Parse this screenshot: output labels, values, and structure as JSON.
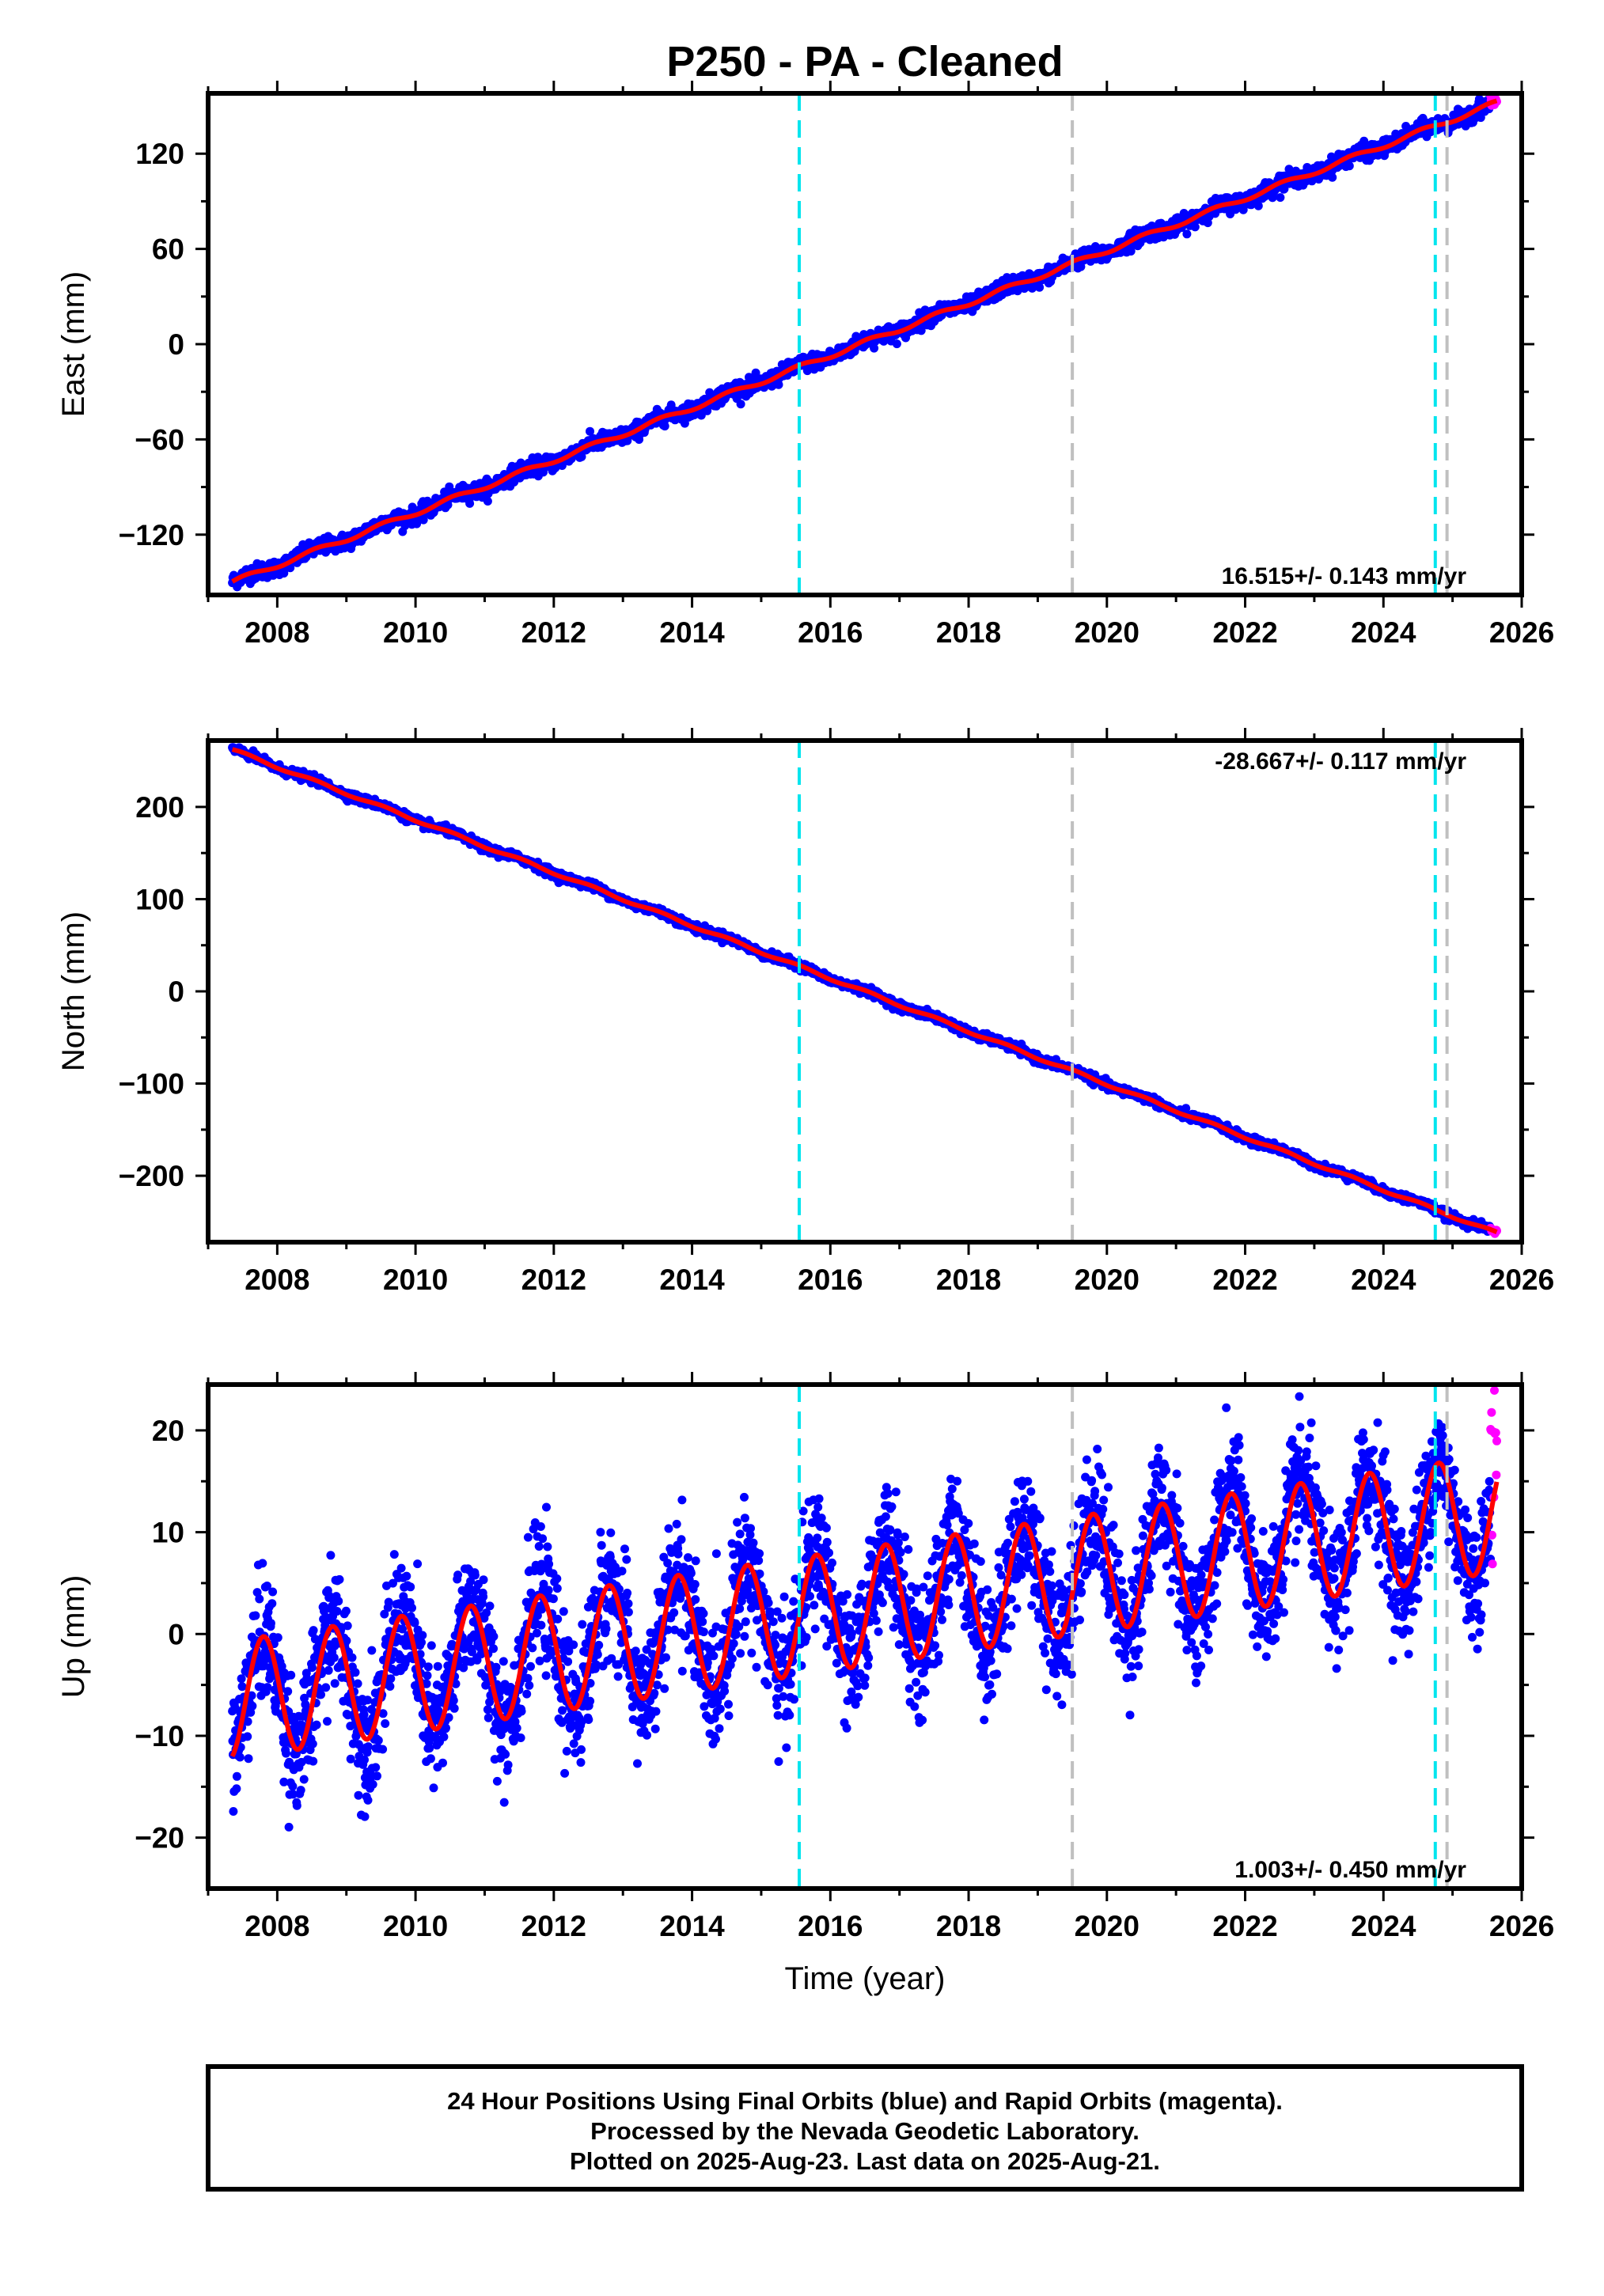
{
  "title": "P250  - PA - Cleaned",
  "xlabel": "Time (year)",
  "colors": {
    "final": "#0000ff",
    "rapid": "#ff00ff",
    "model": "#ff0000",
    "eq": "#00e5ee",
    "equip": "#c0c0c0"
  },
  "footer": {
    "line1": "24 Hour Positions Using Final Orbits (blue) and Rapid Orbits (magenta).",
    "line2": "Processed by the Nevada Geodetic Laboratory.",
    "line3": "Plotted on 2025-Aug-23. Last data on 2025-Aug-21."
  },
  "chart_data": [
    {
      "type": "scatter",
      "component": "East",
      "ylabel": "East (mm)",
      "rate_label": "16.515+/- 0.143 mm/yr",
      "xlim": [
        2007,
        2026
      ],
      "ylim": [
        -158,
        158
      ],
      "xticks": [
        2008,
        2010,
        2012,
        2014,
        2016,
        2018,
        2020,
        2022,
        2024,
        2026
      ],
      "yticks": [
        -120,
        -60,
        0,
        60,
        120
      ],
      "data_span": [
        2007.35,
        2025.64
      ],
      "model": {
        "at_start": -150,
        "rate_mm_yr": 16.515,
        "annual_amp": 1.5,
        "noise": 2.5
      },
      "vlines": [
        {
          "x": 2015.55,
          "kind": "eq"
        },
        {
          "x": 2019.5,
          "kind": "equip"
        },
        {
          "x": 2024.75,
          "kind": "eq"
        },
        {
          "x": 2024.92,
          "kind": "equip"
        }
      ],
      "rapid_range": [
        2025.55,
        2025.64
      ]
    },
    {
      "type": "scatter",
      "component": "North",
      "ylabel": "North (mm)",
      "rate_label": "-28.667+/- 0.117 mm/yr",
      "xlim": [
        2007,
        2026
      ],
      "ylim": [
        -272,
        272
      ],
      "xticks": [
        2008,
        2010,
        2012,
        2014,
        2016,
        2018,
        2020,
        2022,
        2024,
        2026
      ],
      "yticks": [
        -200,
        -100,
        0,
        100,
        200
      ],
      "data_span": [
        2007.35,
        2025.64
      ],
      "model": {
        "at_start": 262,
        "rate_mm_yr": -28.667,
        "annual_amp": 1.5,
        "noise": 2.2
      },
      "vlines": [
        {
          "x": 2015.55,
          "kind": "eq"
        },
        {
          "x": 2019.5,
          "kind": "equip"
        },
        {
          "x": 2024.75,
          "kind": "eq"
        },
        {
          "x": 2024.92,
          "kind": "equip"
        }
      ],
      "rapid_range": [
        2025.55,
        2025.64
      ]
    },
    {
      "type": "scatter",
      "component": "Up",
      "ylabel": "Up (mm)",
      "rate_label": "1.003+/- 0.450 mm/yr",
      "xlim": [
        2007,
        2026
      ],
      "ylim": [
        -25,
        24.5
      ],
      "xticks": [
        2008,
        2010,
        2012,
        2014,
        2016,
        2018,
        2020,
        2022,
        2024,
        2026
      ],
      "yticks": [
        -20,
        -10,
        0,
        10,
        20
      ],
      "data_span": [
        2007.35,
        2025.64
      ],
      "model": {
        "at_start": -6.5,
        "rate_mm_yr": 1.003,
        "annual_amp": 5.8,
        "phase_year_frac": 0.55,
        "noise": 3.0
      },
      "vlines": [
        {
          "x": 2015.55,
          "kind": "eq"
        },
        {
          "x": 2019.5,
          "kind": "equip"
        },
        {
          "x": 2024.75,
          "kind": "eq"
        },
        {
          "x": 2024.92,
          "kind": "equip"
        }
      ],
      "rapid_range": [
        2025.55,
        2025.64
      ]
    }
  ]
}
